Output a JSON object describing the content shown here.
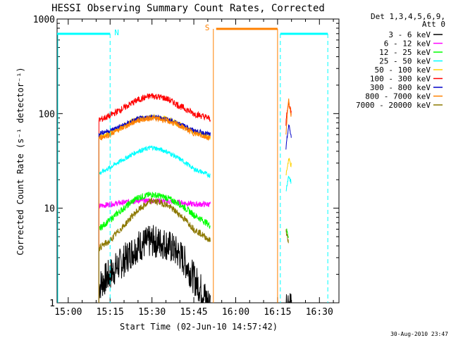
{
  "chart_data": {
    "type": "line",
    "title": "HESSI Observing Summary Count Rates, Corrected",
    "xlabel": "Start Time (02-Jun-10 14:57:42)",
    "ylabel": "Corrected Count Rate (s⁻¹ detector⁻¹)",
    "yscale": "log",
    "ylim": [
      1,
      1000
    ],
    "xlim": [
      "14:56",
      "16:37"
    ],
    "grid": false,
    "xticks": [
      "15:00",
      "15:15",
      "15:30",
      "15:45",
      "16:00",
      "16:15",
      "16:30"
    ],
    "yticks": [
      "1",
      "10",
      "100",
      "1000"
    ],
    "legend_title": [
      "Det 1,3,4,5,6,9,",
      "Att 0"
    ],
    "legend_position": "right",
    "series": [
      {
        "name": "3 - 6 keV",
        "color": "#000000",
        "t": [
          "15:11",
          "15:15",
          "15:20",
          "15:25",
          "15:30",
          "15:35",
          "15:40",
          "15:45",
          "15:50",
          "16:18",
          "16:19",
          "16:20"
        ],
        "values": [
          1.5,
          2.0,
          2.8,
          4.0,
          4.5,
          4.2,
          3.2,
          1.8,
          1.0,
          1.0,
          1.0,
          1.0
        ]
      },
      {
        "name": "6 - 12 keV",
        "color": "#ff00ff",
        "t": [
          "15:11",
          "15:15",
          "15:20",
          "15:25",
          "15:30",
          "15:35",
          "15:40",
          "15:45",
          "15:51"
        ],
        "values": [
          10.5,
          11,
          11.5,
          12,
          12,
          11.8,
          11.5,
          11,
          11
        ]
      },
      {
        "name": "12 - 25 keV",
        "color": "#00ff00",
        "t": [
          "15:11",
          "15:15",
          "15:20",
          "15:25",
          "15:30",
          "15:35",
          "15:40",
          "15:45",
          "15:51",
          "16:18",
          "16:19"
        ],
        "values": [
          6,
          7.5,
          10,
          13,
          14,
          13,
          11,
          8.5,
          6.5,
          6,
          5
        ]
      },
      {
        "name": "25 - 50 keV",
        "color": "#00ffff",
        "t": [
          "15:11",
          "15:15",
          "15:20",
          "15:25",
          "15:30",
          "15:35",
          "15:40",
          "15:45",
          "15:51",
          "16:18",
          "16:19",
          "16:20"
        ],
        "values": [
          23,
          27,
          33,
          40,
          44,
          40,
          33,
          26,
          22,
          15,
          22,
          18
        ]
      },
      {
        "name": "50 - 100 keV",
        "color": "#ffd200",
        "t": [
          "15:11",
          "15:15",
          "15:20",
          "15:25",
          "15:30",
          "15:35",
          "15:40",
          "15:45",
          "15:51",
          "16:18",
          "16:19",
          "16:20"
        ],
        "values": [
          58,
          63,
          75,
          88,
          92,
          88,
          76,
          64,
          56,
          22,
          33,
          28
        ]
      },
      {
        "name": "100 - 300 keV",
        "color": "#ff0000",
        "t": [
          "15:11",
          "15:15",
          "15:20",
          "15:25",
          "15:30",
          "15:35",
          "15:40",
          "15:45",
          "15:51",
          "16:18",
          "16:19",
          "16:20"
        ],
        "values": [
          85,
          95,
          115,
          140,
          155,
          145,
          120,
          100,
          88,
          80,
          130,
          100
        ]
      },
      {
        "name": "300 - 800 keV",
        "color": "#0000c8",
        "t": [
          "15:11",
          "15:15",
          "15:20",
          "15:25",
          "15:30",
          "15:35",
          "15:40",
          "15:45",
          "15:51",
          "16:18",
          "16:19",
          "16:20"
        ],
        "values": [
          62,
          66,
          76,
          88,
          93,
          88,
          78,
          66,
          60,
          40,
          75,
          55
        ]
      },
      {
        "name": "800 - 7000 keV",
        "color": "#ff8000",
        "t": [
          "15:11",
          "15:15",
          "15:20",
          "15:25",
          "15:30",
          "15:35",
          "15:40",
          "15:45",
          "15:51",
          "16:18",
          "16:19",
          "16:20"
        ],
        "values": [
          55,
          60,
          72,
          85,
          90,
          85,
          74,
          62,
          55,
          60,
          135,
          90
        ]
      },
      {
        "name": "7000 - 20000 keV",
        "color": "#8c7800",
        "t": [
          "15:11",
          "15:15",
          "15:20",
          "15:25",
          "15:30",
          "15:35",
          "15:40",
          "15:45",
          "15:51",
          "16:18",
          "16:19"
        ],
        "values": [
          3.8,
          4.5,
          6.5,
          9.5,
          12,
          11,
          8.5,
          6,
          4.5,
          6,
          4
        ]
      }
    ],
    "flags": [
      {
        "label": "N",
        "color": "#00ffff",
        "segments": [
          [
            "14:56",
            "15:15"
          ],
          [
            "16:16",
            "16:33"
          ]
        ],
        "markers": [
          "15:15",
          "16:16",
          "16:33"
        ]
      },
      {
        "label": "S",
        "color": "#ff8000",
        "segments": [
          [
            "15:53",
            "16:15"
          ]
        ],
        "markers": [
          "15:52",
          "16:15"
        ]
      }
    ],
    "timestamp": "30-Aug-2010 23:47"
  }
}
